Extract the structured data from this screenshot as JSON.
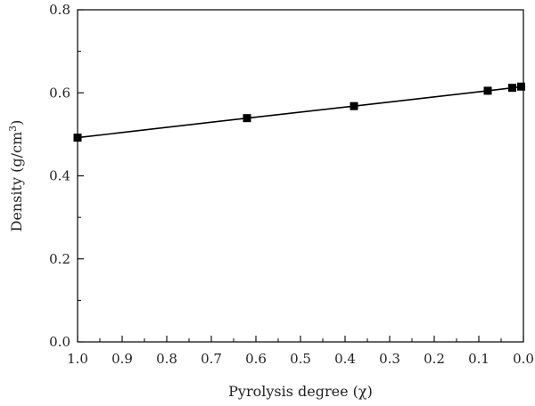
{
  "chart_data": {
    "type": "line",
    "title": "",
    "xlabel": "Pyrolysis degree (χ)",
    "ylabel_prefix": "Density (g/cm",
    "ylabel_sup": "3",
    "ylabel_suffix": ")",
    "xlim": [
      1.0,
      0.0
    ],
    "ylim": [
      0.0,
      0.8
    ],
    "x_reversed": true,
    "x_ticks": [
      "1.0",
      "0.9",
      "0.8",
      "0.7",
      "0.6",
      "0.5",
      "0.4",
      "0.3",
      "0.2",
      "0.1",
      "0.0"
    ],
    "y_ticks": [
      "0.0",
      "0.2",
      "0.4",
      "0.6",
      "0.8"
    ],
    "grid": false,
    "series": [
      {
        "x": [
          1.0,
          0.62,
          0.38,
          0.08,
          0.025,
          0.005
        ],
        "y": [
          0.492,
          0.539,
          0.568,
          0.605,
          0.612,
          0.615
        ],
        "marker": "square",
        "color": "#000000"
      }
    ]
  }
}
